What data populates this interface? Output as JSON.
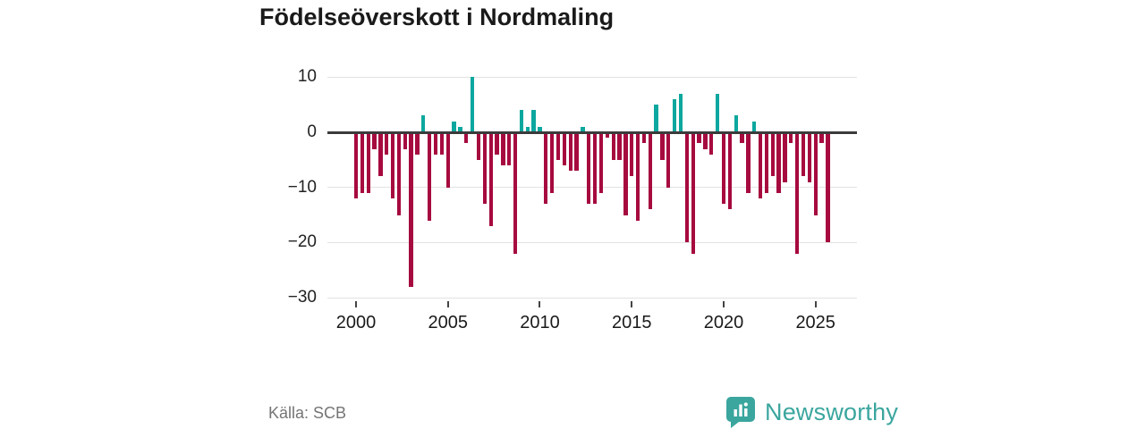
{
  "page": {
    "title": "Födelseöverskott i Nordmaling",
    "source_label": "Källa: SCB",
    "brand_name": "Newsworthy",
    "brand_color": "#3ba69e"
  },
  "chart_data": {
    "type": "bar",
    "title": "Födelseöverskott i Nordmaling",
    "xlabel": "",
    "ylabel": "",
    "grid": true,
    "legend": "none",
    "ylim": [
      -30.5,
      11
    ],
    "y_ticks": [
      10,
      0,
      -10,
      -20,
      -30
    ],
    "y_tick_labels": [
      "10",
      "0",
      "−10",
      "−20",
      "−30"
    ],
    "x_tick_years": [
      2000,
      2005,
      2010,
      2015,
      2020,
      2025
    ],
    "x_tick_labels": [
      "2000",
      "2005",
      "2010",
      "2015",
      "2020",
      "2025"
    ],
    "start_year": 2000,
    "bars_per_year": 3,
    "colors": {
      "positive": "#0ca79e",
      "negative": "#a60a3e"
    },
    "values": [
      -12,
      -11,
      -11,
      -3,
      -8,
      -4,
      -12,
      -15,
      -3,
      -28,
      -4,
      3,
      -16,
      -4,
      -4,
      -10,
      2,
      1,
      -2,
      10,
      -5,
      -13,
      -17,
      -4,
      -6,
      -6,
      -22,
      4,
      1,
      4,
      1,
      -13,
      -11,
      -5,
      -6,
      -7,
      -7,
      1,
      -13,
      -13,
      -11,
      -1,
      -5,
      -5,
      -15,
      -8,
      -16,
      -2,
      -14,
      5,
      -5,
      -10,
      6,
      7,
      -20,
      -22,
      -2,
      -3,
      -4,
      7,
      -13,
      -14,
      3,
      -2,
      -11,
      2,
      -12,
      -11,
      -8,
      -11,
      -9,
      -2,
      -22,
      -8,
      -9,
      -15,
      -2,
      -20
    ]
  }
}
